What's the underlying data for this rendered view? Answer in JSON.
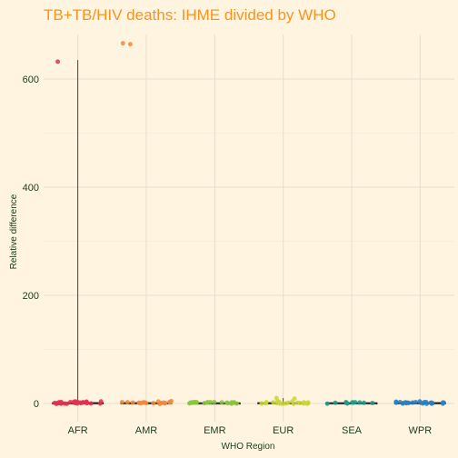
{
  "chart_data": {
    "type": "scatter",
    "subtype": "jittered-points-with-boxplots",
    "title": "TB+TB/HIV deaths: IHME divided by WHO",
    "xlabel": "WHO Region",
    "ylabel": "Relative difference",
    "categories": [
      "AFR",
      "AMR",
      "EMR",
      "EUR",
      "SEA",
      "WPR"
    ],
    "ylim": [
      -15,
      665
    ],
    "yticks": [
      0,
      200,
      400,
      600
    ],
    "grid": true,
    "legend": "none",
    "series": [
      {
        "category": "AFR",
        "color": "#e0314f",
        "box": {
          "min": 0,
          "q1": 0.6,
          "median": 1.0,
          "q3": 1.6,
          "max": 635
        },
        "points": [
          0.2,
          0.5,
          0.8,
          1.1,
          1.4,
          0.3,
          0.9,
          1.7,
          2.2,
          0.6,
          1.0,
          1.3,
          0.4,
          2.8,
          3.1,
          0.7,
          1.2,
          0.5,
          0.9,
          1.6,
          2.0,
          0.8,
          1.1,
          0.3,
          1.9,
          0.6,
          1.4,
          2.5,
          0.7,
          1.0,
          632
        ]
      },
      {
        "category": "AMR",
        "color": "#f28a3c",
        "box": {
          "min": 0,
          "q1": 0.6,
          "median": 1.0,
          "q3": 1.5,
          "max": 4.2
        },
        "points": [
          0.5,
          1.2,
          0.8,
          2.4,
          1.6,
          0.3,
          3.2,
          1.0,
          0.7,
          1.9,
          0.4,
          1.1,
          2.7,
          0.9,
          1.4,
          0.6,
          4.2,
          1.3,
          0.8,
          2.1,
          665,
          665
        ]
      },
      {
        "category": "EMR",
        "color": "#8bc63f",
        "box": {
          "min": 0,
          "q1": 0.4,
          "median": 0.8,
          "q3": 1.3,
          "max": 2.6
        },
        "points": [
          0.6,
          1.0,
          0.4,
          1.3,
          0.8,
          2.2,
          0.5,
          1.1,
          0.9,
          1.6,
          0.3,
          0.7,
          1.2,
          2.6,
          0.8,
          0.5,
          1.0,
          0.6,
          1.4,
          0.9,
          0.7,
          1.1
        ]
      },
      {
        "category": "EUR",
        "color": "#c9d636",
        "box": {
          "min": 0,
          "q1": 0.5,
          "median": 0.9,
          "q3": 1.6,
          "max": 10
        },
        "points": [
          0.6,
          1.2,
          0.8,
          2.1,
          1.4,
          0.5,
          1.0,
          3.6,
          0.9,
          1.7,
          0.4,
          1.1,
          2.4,
          0.7,
          1.5,
          0.6,
          4.8,
          1.3,
          0.9,
          7.6,
          10,
          1.0,
          0.8,
          1.2
        ]
      },
      {
        "category": "SEA",
        "color": "#1f9c8b",
        "box": {
          "min": 0,
          "q1": 0.5,
          "median": 0.9,
          "q3": 1.4,
          "max": 2.5
        },
        "points": [
          0.8,
          1.2,
          0.5,
          1.5,
          0.9,
          0.6,
          1.1,
          2.0,
          0.7,
          1.3,
          0.9
        ]
      },
      {
        "category": "WPR",
        "color": "#2b7fc1",
        "box": {
          "min": 0,
          "q1": 0.6,
          "median": 1.0,
          "q3": 1.6,
          "max": 3.5
        },
        "points": [
          0.6,
          1.1,
          0.8,
          1.6,
          0.4,
          1.3,
          2.2,
          0.9,
          1.0,
          0.7,
          1.5,
          0.5,
          1.2,
          2.8,
          0.8,
          1.4,
          0.6,
          1.1,
          0.9,
          1.8,
          0.7,
          1.0,
          1.3,
          3.5,
          0.5,
          1.2
        ]
      }
    ]
  }
}
